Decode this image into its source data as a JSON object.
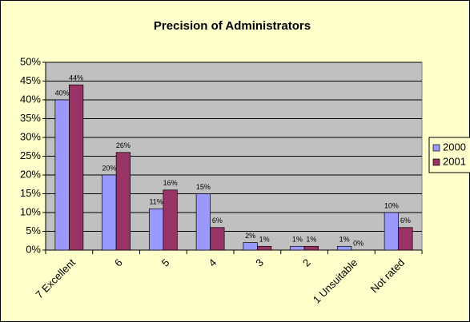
{
  "chart_data": {
    "type": "bar",
    "title": "Precision of Administrators",
    "categories": [
      "7 Excellent",
      "6",
      "5",
      "4",
      "3",
      "2",
      "1 Unsuitable",
      "Not rated"
    ],
    "series": [
      {
        "name": "2000",
        "color": "#9999ff",
        "values": [
          40,
          20,
          11,
          15,
          2,
          1,
          1,
          10
        ],
        "value_labels": [
          "40%",
          "20%",
          "11%",
          "15%",
          "2%",
          "1%",
          "1%",
          "10%"
        ]
      },
      {
        "name": "2001",
        "color": "#993366",
        "values": [
          44,
          26,
          16,
          6,
          1,
          1,
          0,
          6
        ],
        "value_labels": [
          "44%",
          "26%",
          "16%",
          "6%",
          "1%",
          "1%",
          "0%",
          "6%"
        ]
      }
    ],
    "ylim": [
      0,
      50
    ],
    "yticks": [
      {
        "value": 0,
        "label": "0%"
      },
      {
        "value": 5,
        "label": "5%"
      },
      {
        "value": 10,
        "label": "10%"
      },
      {
        "value": 15,
        "label": "15%"
      },
      {
        "value": 20,
        "label": "20%"
      },
      {
        "value": 25,
        "label": "25%"
      },
      {
        "value": 30,
        "label": "30%"
      },
      {
        "value": 35,
        "label": "35%"
      },
      {
        "value": 40,
        "label": "40%"
      },
      {
        "value": 45,
        "label": "45%"
      },
      {
        "value": 50,
        "label": "50%"
      }
    ],
    "grid": true,
    "legend": "right"
  }
}
